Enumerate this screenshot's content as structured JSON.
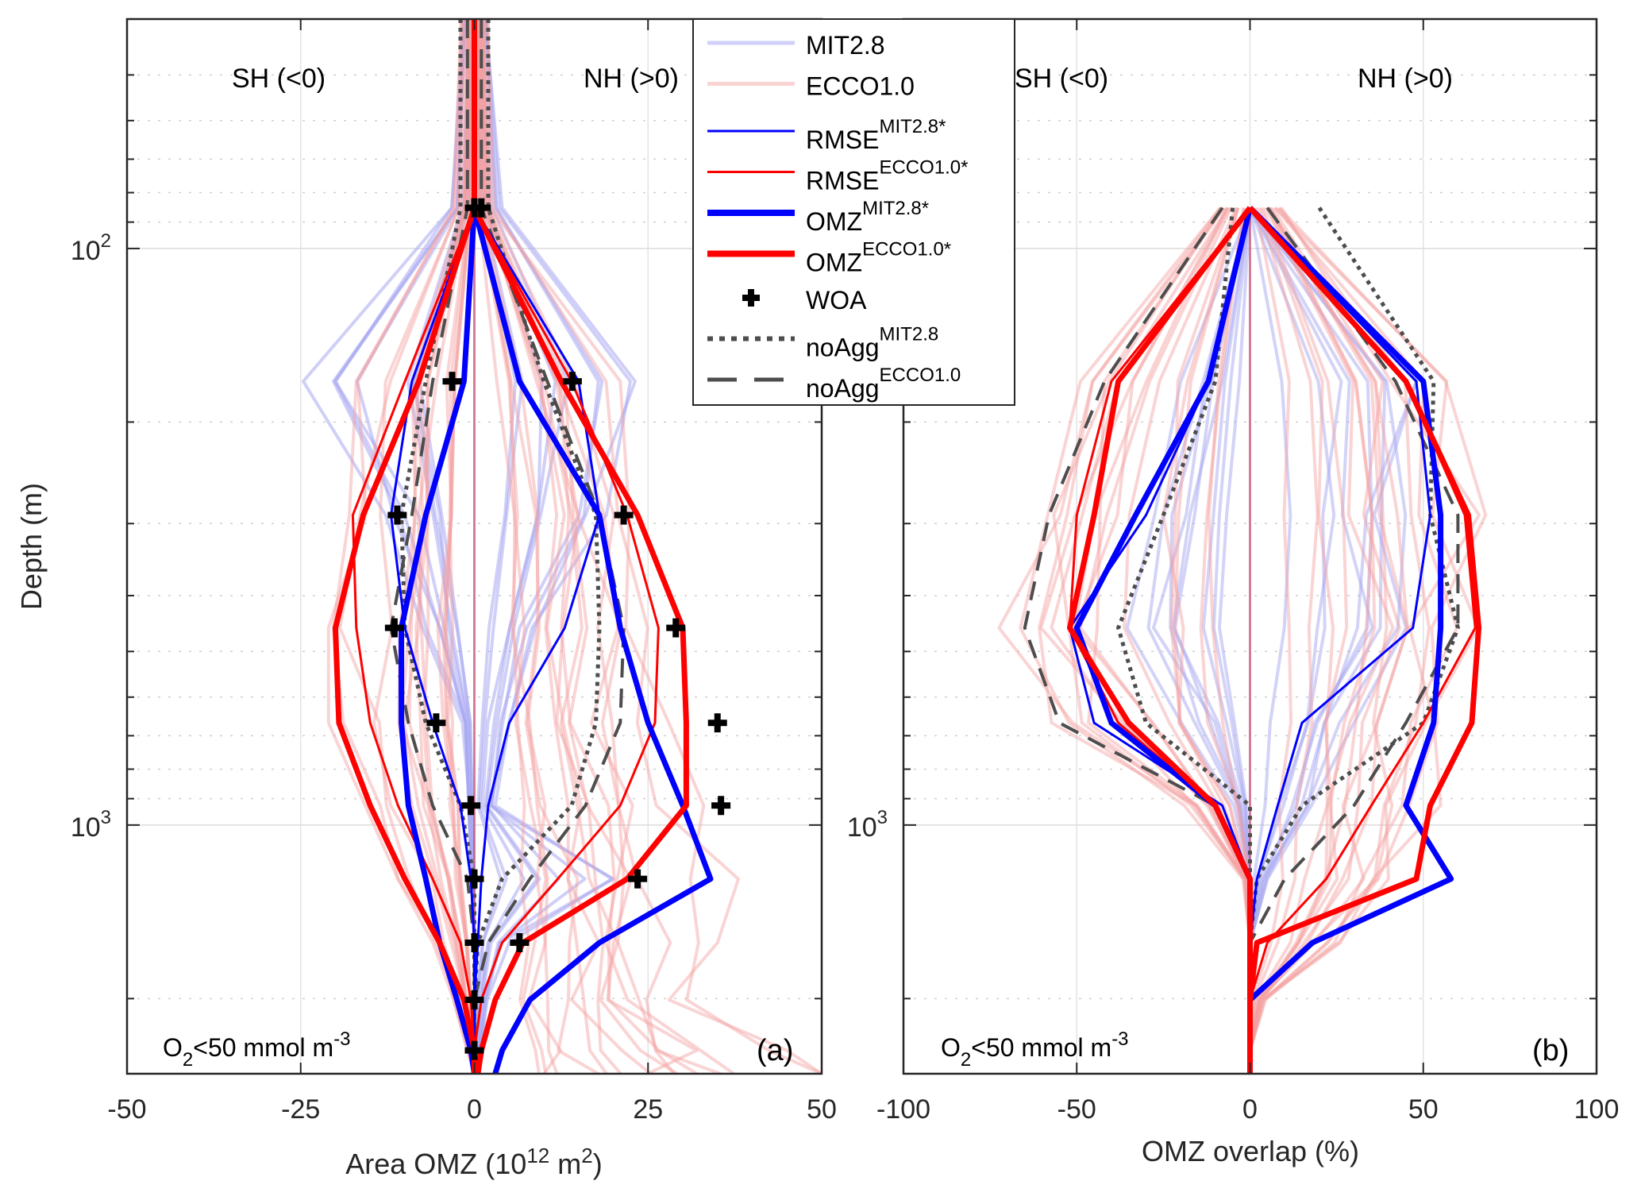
{
  "figure": {
    "panel_labels": [
      "(a)",
      "(b)"
    ],
    "hemisphere_labels": {
      "south": "SH (<0)",
      "north": "NH (>0)"
    },
    "annotation": {
      "base": "O",
      "sub": "2",
      "rest": "<50 mmol  m",
      "sup": "-3"
    }
  },
  "legend": {
    "items": [
      {
        "key": "mit",
        "label": "MIT2.8",
        "sup": "",
        "style": "thin-faint-blue",
        "color": "#b0b0f5"
      },
      {
        "key": "ecco",
        "label": "ECCO1.0",
        "sup": "",
        "style": "thin-faint-red",
        "color": "#f7b5b5"
      },
      {
        "key": "rmse_mit",
        "label": "RMSE",
        "sup": "MIT2.8*",
        "style": "thin",
        "color": "#0000ff"
      },
      {
        "key": "rmse_ecco",
        "label": "RMSE",
        "sup": "ECCO1.0*",
        "style": "thin",
        "color": "#ff0000"
      },
      {
        "key": "omz_mit",
        "label": "OMZ",
        "sup": "MIT2.8*",
        "style": "thick",
        "color": "#0000ff"
      },
      {
        "key": "omz_ecco",
        "label": "OMZ",
        "sup": "ECCO1.0*",
        "style": "thick",
        "color": "#ff0000"
      },
      {
        "key": "woa",
        "label": "WOA",
        "sup": "",
        "style": "marker-plus",
        "color": "#000000"
      },
      {
        "key": "noagg_mit",
        "label": "noAgg",
        "sup": "MIT2.8",
        "style": "dotted",
        "color": "#4d4d4d"
      },
      {
        "key": "noagg_ecco",
        "label": "noAgg",
        "sup": "ECCO1.0",
        "style": "dashed",
        "color": "#4d4d4d"
      }
    ]
  },
  "chart_data": [
    {
      "type": "line",
      "panel": "a",
      "title": "",
      "xlabel": "Area OMZ (10^12 m^2)",
      "xlabel_parts": {
        "base": "Area OMZ (10",
        "sup1": "12",
        "mid": " m",
        "sup2": "2",
        "end": ")"
      },
      "ylabel": "Depth (m)",
      "xlim": [
        -50,
        50
      ],
      "ylim": [
        40,
        2700
      ],
      "yscale": "log",
      "yreverse": true,
      "xticks": [
        -50,
        -25,
        0,
        25,
        50
      ],
      "xtick_labels": [
        "-50",
        "-25",
        "0",
        "25",
        "50"
      ],
      "yticks_major": [
        100,
        1000
      ],
      "ytick_labels": [
        {
          "base": "10",
          "exp": "2"
        },
        {
          "base": "10",
          "exp": "3"
        }
      ],
      "grid": true,
      "depths": [
        40,
        85,
        170,
        290,
        455,
        665,
        925,
        1240,
        1600,
        2010,
        2460,
        2700
      ],
      "series": [
        {
          "name": "OMZ MIT2.8* (SH)",
          "key": "omz_mit",
          "values": [
            0,
            0,
            -1.5,
            -7,
            -10.5,
            -10.5,
            -9.5,
            -7,
            -5,
            -2.5,
            -0.5,
            0
          ]
        },
        {
          "name": "OMZ MIT2.8* (NH)",
          "key": "omz_mit",
          "values": [
            0,
            0,
            6.5,
            18,
            21,
            25,
            30,
            34,
            18,
            8,
            4,
            3
          ]
        },
        {
          "name": "OMZ ECCO1.0* (SH)",
          "key": "omz_ecco",
          "values": [
            0,
            0,
            -8,
            -16,
            -20,
            -19.5,
            -15,
            -10,
            -5,
            -1.5,
            0,
            0
          ]
        },
        {
          "name": "OMZ ECCO1.0* (NH)",
          "key": "omz_ecco",
          "values": [
            0,
            0,
            12.5,
            23.5,
            30,
            30.5,
            30.5,
            22,
            7,
            3,
            1,
            0.5
          ]
        },
        {
          "name": "RMSE MIT2.8* (SH)",
          "key": "rmse_mit",
          "values": [
            0,
            0,
            -9,
            -12,
            -10,
            -6,
            -2,
            -0.5,
            0,
            0,
            0,
            0
          ]
        },
        {
          "name": "RMSE MIT2.8* (NH)",
          "key": "rmse_mit",
          "values": [
            0,
            0,
            15,
            18,
            13,
            5,
            2,
            1,
            0.5,
            0,
            0,
            0
          ]
        },
        {
          "name": "RMSE ECCO1.0* (SH)",
          "key": "rmse_ecco",
          "values": [
            0,
            0,
            -10,
            -17.5,
            -17,
            -15,
            -11,
            -6,
            -2,
            -0.5,
            0,
            0
          ]
        },
        {
          "name": "RMSE ECCO1.0* (NH)",
          "key": "rmse_ecco",
          "values": [
            0,
            0,
            14,
            22,
            26.5,
            26,
            21,
            12,
            4,
            1,
            0,
            0
          ]
        },
        {
          "name": "noAgg MIT2.8 (SH)",
          "key": "noagg_mit",
          "values": [
            -2,
            -2,
            -7,
            -10.5,
            -10,
            -7,
            -2,
            0,
            0,
            0,
            0,
            0
          ]
        },
        {
          "name": "noAgg MIT2.8 (NH)",
          "key": "noagg_mit",
          "values": [
            2,
            2,
            10,
            17.5,
            18,
            17.5,
            14,
            4,
            0.5,
            0,
            0,
            0
          ]
        },
        {
          "name": "noAgg ECCO1.0 (SH)",
          "key": "noagg_ecco",
          "values": [
            -1,
            -1,
            -6,
            -9,
            -12,
            -9.5,
            -6,
            -1,
            0,
            0,
            0,
            0
          ]
        },
        {
          "name": "noAgg ECCO1.0 (NH)",
          "key": "noagg_ecco",
          "values": [
            1,
            1,
            10.5,
            18,
            21.5,
            21,
            16,
            8,
            2,
            0,
            0,
            0
          ]
        }
      ],
      "woa": {
        "depths": [
          85,
          85,
          170,
          170,
          290,
          290,
          455,
          455,
          665,
          665,
          925,
          925,
          1240,
          1240,
          1600,
          1600,
          2010,
          2460
        ],
        "values": [
          0,
          1,
          -3.2,
          14.1,
          -11.1,
          21.5,
          -11.5,
          29.0,
          -5.5,
          35.0,
          -0.5,
          35.5,
          0,
          23.5,
          0,
          6.5,
          0,
          0
        ]
      },
      "ensemble_envelope": {
        "mit_sh_min": [
          -2,
          -4,
          -27,
          -15,
          -8,
          -2,
          -1,
          -0.5,
          0,
          0,
          0,
          0
        ],
        "mit_nh_max": [
          2,
          4,
          25,
          20,
          10,
          5,
          3,
          20,
          5,
          2,
          1,
          0
        ],
        "ecco_sh_min": [
          -2,
          -3,
          -17,
          -18,
          -21,
          -21,
          -16,
          -11,
          -6,
          -3,
          -1,
          0
        ],
        "ecco_nh_max": [
          2,
          3,
          21,
          27,
          27,
          28,
          33,
          38,
          35,
          35,
          45,
          50
        ]
      }
    },
    {
      "type": "line",
      "panel": "b",
      "title": "",
      "xlabel": "OMZ overlap (%)",
      "ylabel": "Depth (m)",
      "xlim": [
        -100,
        100
      ],
      "ylim": [
        40,
        2700
      ],
      "yscale": "log",
      "yreverse": true,
      "xticks": [
        -100,
        -50,
        0,
        50,
        100
      ],
      "xtick_labels": [
        "-100",
        "-50",
        "0",
        "50",
        "100"
      ],
      "yticks_major": [
        1000
      ],
      "ytick_labels": [
        {
          "base": "10",
          "exp": "3"
        }
      ],
      "grid": true,
      "depths": [
        85,
        170,
        290,
        455,
        665,
        925,
        1240,
        1600,
        2010,
        2460,
        2700
      ],
      "series": [
        {
          "name": "OMZ MIT2.8* (SH)",
          "key": "omz_mit",
          "values": [
            0,
            -12,
            -33,
            -50,
            -40,
            -10,
            0,
            0,
            0,
            0,
            0
          ]
        },
        {
          "name": "OMZ MIT2.8* (NH)",
          "key": "omz_mit",
          "values": [
            0,
            50,
            55,
            55,
            53,
            45,
            58,
            18,
            0,
            0,
            0
          ]
        },
        {
          "name": "OMZ ECCO1.0* (SH)",
          "key": "omz_ecco",
          "values": [
            0,
            -38,
            -45,
            -52,
            -35,
            -10,
            0,
            0,
            0,
            0,
            0
          ]
        },
        {
          "name": "OMZ ECCO1.0* (NH)",
          "key": "omz_ecco",
          "values": [
            0,
            45,
            63,
            66,
            64,
            52,
            48,
            2,
            0,
            0,
            0
          ]
        },
        {
          "name": "RMSE MIT2.8* (SH)",
          "key": "rmse_mit",
          "values": [
            0,
            -12,
            -30,
            -52,
            -45,
            -8,
            0,
            0,
            0,
            0,
            0
          ]
        },
        {
          "name": "RMSE MIT2.8* (NH)",
          "key": "rmse_mit",
          "values": [
            0,
            48,
            52,
            47,
            15,
            8,
            2,
            0,
            0,
            0,
            0
          ]
        },
        {
          "name": "RMSE ECCO1.0* (SH)",
          "key": "rmse_ecco",
          "values": [
            0,
            -40,
            -50,
            -52,
            -38,
            -10,
            0,
            0,
            0,
            0,
            0
          ]
        },
        {
          "name": "RMSE ECCO1.0* (NH)",
          "key": "rmse_ecco",
          "values": [
            0,
            45,
            62,
            65,
            50,
            35,
            22,
            5,
            0,
            0,
            0
          ]
        },
        {
          "name": "noAgg MIT2.8 (SH)",
          "key": "noagg_mit",
          "values": [
            -5,
            -10,
            -25,
            -38,
            -30,
            0,
            0,
            0,
            0,
            0,
            0
          ]
        },
        {
          "name": "noAgg MIT2.8 (NH)",
          "key": "noagg_mit",
          "values": [
            20,
            53,
            52,
            60,
            50,
            15,
            2,
            0,
            0,
            0,
            0
          ]
        },
        {
          "name": "noAgg ECCO1.0 (SH)",
          "key": "noagg_ecco",
          "values": [
            -8,
            -42,
            -58,
            -65,
            -55,
            -10,
            0,
            0,
            0,
            0,
            0
          ]
        },
        {
          "name": "noAgg ECCO1.0 (NH)",
          "key": "noagg_ecco",
          "values": [
            5,
            42,
            60,
            60,
            45,
            30,
            10,
            0,
            0,
            0,
            0
          ]
        }
      ],
      "ensemble_envelope": {
        "mit_sh_min": [
          0,
          -20,
          -33,
          -40,
          -20,
          -5,
          0,
          0,
          0,
          0,
          0
        ],
        "mit_nh_max": [
          0,
          48,
          45,
          45,
          30,
          20,
          5,
          0,
          0,
          0,
          0
        ],
        "ecco_sh_min": [
          -10,
          -55,
          -70,
          -78,
          -60,
          -20,
          -2,
          0,
          0,
          0,
          0
        ],
        "ecco_nh_max": [
          10,
          58,
          68,
          68,
          62,
          55,
          50,
          30,
          5,
          0,
          0
        ]
      }
    }
  ]
}
